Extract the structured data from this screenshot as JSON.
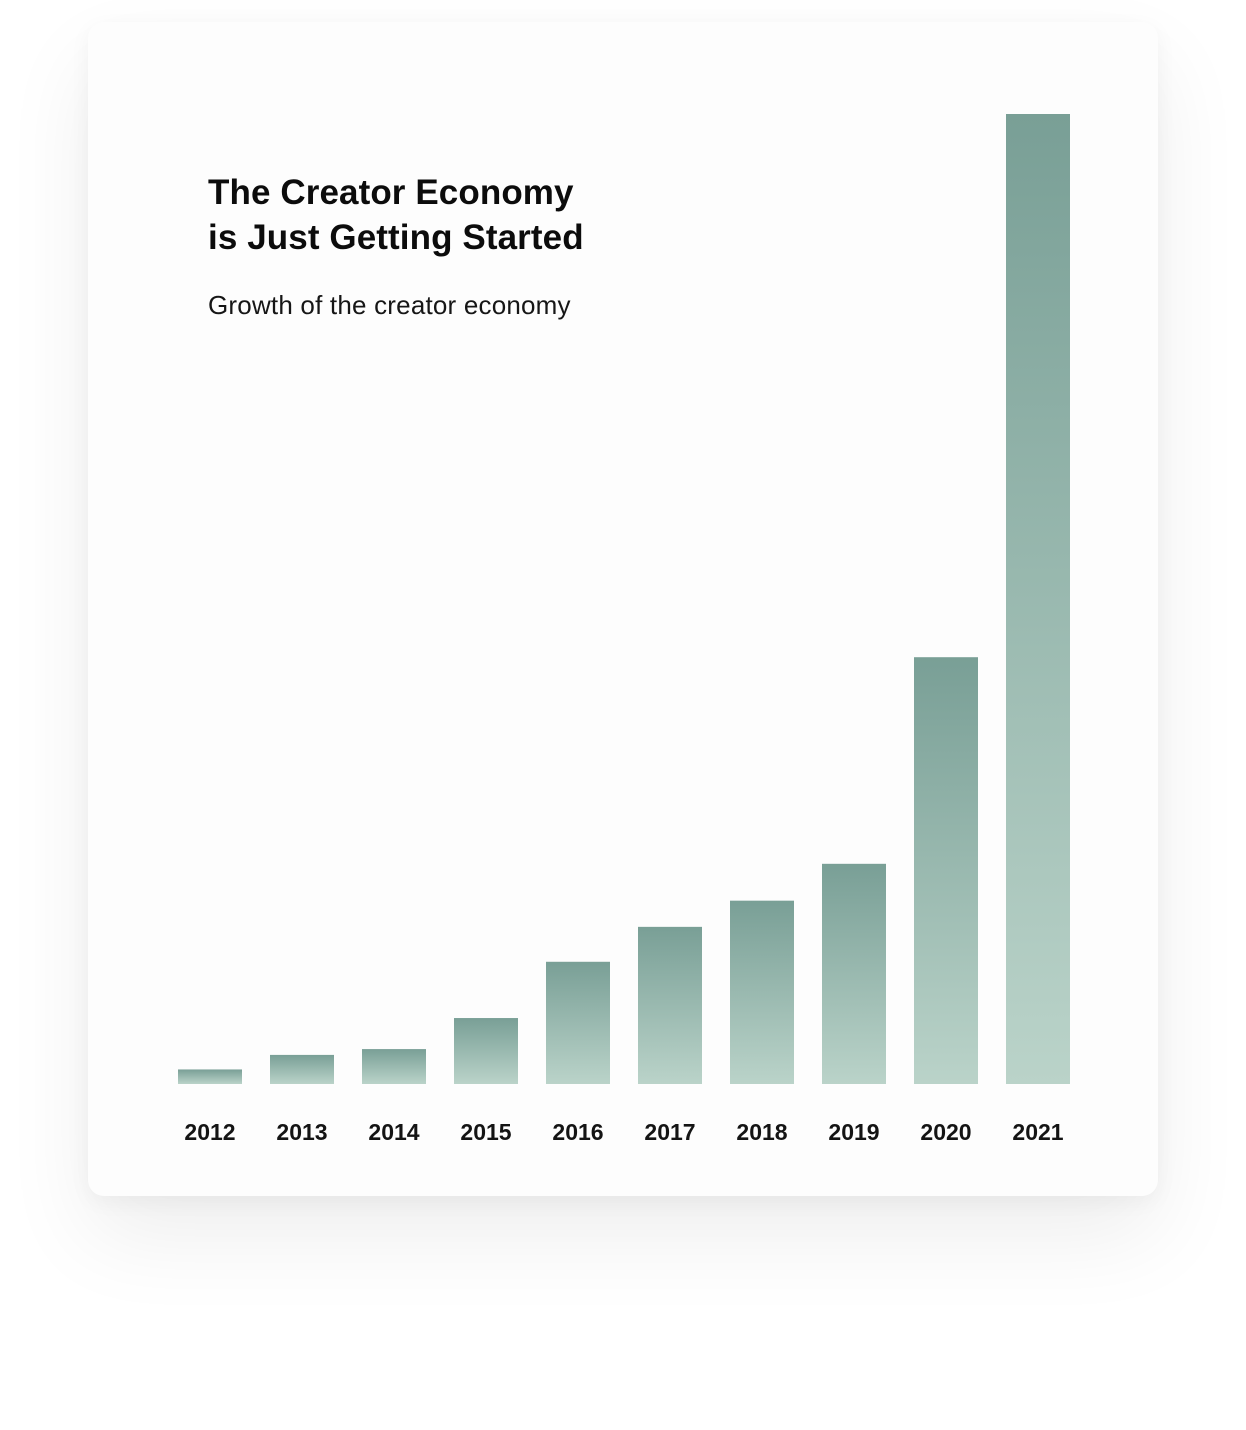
{
  "chart_data": {
    "type": "bar",
    "title": "The Creator Economy is Just Getting Started",
    "title_lines": [
      "The Creator Economy",
      "is Just Getting Started"
    ],
    "subtitle": "Growth of the creator economy",
    "categories": [
      "2012",
      "2013",
      "2014",
      "2015",
      "2016",
      "2017",
      "2018",
      "2019",
      "2020",
      "2021"
    ],
    "values": [
      1.5,
      3.0,
      3.6,
      6.8,
      12.6,
      16.2,
      18.9,
      22.7,
      44.0,
      100
    ],
    "ylim": [
      0,
      100
    ],
    "xlabel": "",
    "ylabel": "",
    "grid": false,
    "legend": "none",
    "colors": {
      "bar_top": "#799f96",
      "bar_bottom": "#bad3c9",
      "label": "#141414"
    }
  }
}
